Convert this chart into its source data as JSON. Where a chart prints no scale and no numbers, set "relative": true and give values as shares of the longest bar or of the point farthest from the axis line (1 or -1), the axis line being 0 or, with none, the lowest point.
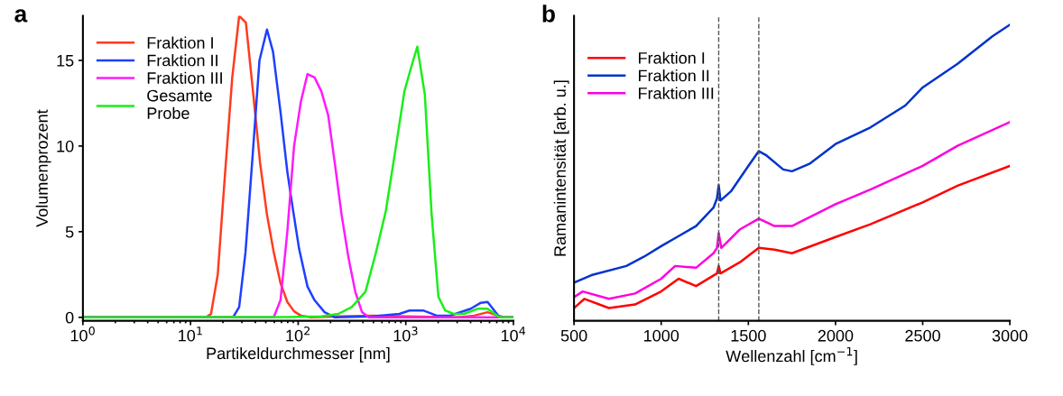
{
  "chart_data": [
    {
      "type": "line",
      "xlabel": "Partikeldurchmesser [nm]",
      "ylabel": "Volumenprozent",
      "annotations": [
        "a"
      ],
      "log": "x",
      "legend": "top left",
      "grid": false,
      "xlim": [
        1,
        10000
      ],
      "xticks": [
        {
          "value": 1,
          "label": "10$^{0}$"
        },
        {
          "value": 10,
          "label": "10$^{1}$"
        },
        {
          "value": 100,
          "label": "10$^{2}$"
        },
        {
          "value": 1000,
          "label": "10$^{3}$"
        },
        {
          "value": 10000,
          "label": "10$^{4}$"
        }
      ],
      "ylim": [
        -0.2,
        17.6
      ],
      "yticks": [
        0,
        5,
        10,
        15
      ],
      "series": [
        {
          "name": "Fraktion I",
          "color": "#ff3b1f",
          "x": [
            1,
            13.9,
            15.5,
            17.9,
            20.7,
            24.4,
            28.3,
            32.7,
            38.3,
            44.3,
            51.3,
            59.3,
            68.5,
            79.3,
            91.6,
            106,
            132,
            236,
            487,
            1007,
            2994,
            4307,
            5754,
            7161,
            8281,
            10000
          ],
          "values": [
            0,
            0,
            0.2,
            2.5,
            8,
            14,
            17.6,
            17.2,
            13,
            9,
            6,
            3.8,
            2,
            0.9,
            0.35,
            0.1,
            0,
            0.05,
            0.1,
            0.05,
            0,
            0.1,
            0.3,
            0.1,
            0,
            0
          ]
        },
        {
          "name": "Fraktion II",
          "color": "#1f3fff",
          "x": [
            1,
            24.8,
            28.3,
            32.4,
            37.8,
            43.7,
            51.3,
            58.4,
            68.5,
            79.3,
            88.4,
            102,
            122,
            142,
            176,
            219,
            487,
            871,
            1083,
            1449,
            1936,
            2588,
            4006,
            4977,
            5754,
            7430,
            10000
          ],
          "values": [
            0,
            0,
            0.6,
            3.8,
            9.5,
            15,
            16.8,
            15.5,
            12,
            8.5,
            6.5,
            4,
            1.8,
            1,
            0.3,
            0,
            0.05,
            0.2,
            0.4,
            0.4,
            0.1,
            0.1,
            0.5,
            0.85,
            0.9,
            0,
            0
          ]
        },
        {
          "name": "Fraktion III",
          "color": "#ff1aff",
          "x": [
            1,
            59.3,
            68.5,
            79.3,
            91.6,
            106,
            122,
            142,
            164,
            190,
            219,
            253,
            293,
            339,
            392,
            453,
            10000
          ],
          "values": [
            0,
            0,
            1,
            5,
            10,
            12.6,
            14.2,
            14,
            13.2,
            11.8,
            9,
            6,
            3.5,
            1.5,
            0.3,
            0,
            0
          ]
        },
        {
          "name": "Gesamte\nProbe",
          "color": "#1aee1a",
          "x": [
            1,
            79.3,
            164,
            236,
            315,
            422,
            524,
            652,
            811,
            971,
            1122,
            1279,
            1503,
            1738,
            2009,
            2323,
            2786,
            3459,
            4634,
            5754,
            7430,
            10000
          ],
          "values": [
            0,
            0.02,
            0.05,
            0.2,
            0.6,
            1.5,
            3.7,
            6.2,
            10,
            13.2,
            14.6,
            15.8,
            13,
            6,
            1.2,
            0.4,
            0.2,
            0.2,
            0.5,
            0.5,
            0,
            0
          ]
        }
      ]
    },
    {
      "type": "line",
      "xlabel": "Wellenzahl [cm$^{−1}$]",
      "ylabel": "Ramanintensität [arb. u.]",
      "annotations": [
        "b"
      ],
      "relative": true,
      "legend": "top left",
      "grid": false,
      "tick_labels": "x",
      "xlim": [
        500,
        3000
      ],
      "xticks": [
        500,
        1000,
        1500,
        2000,
        2500,
        3000
      ],
      "ref_lines": [
        {
          "axis": "x",
          "value": 1330,
          "label": null,
          "color": "#555555",
          "line_style": "dashed"
        },
        {
          "axis": "x",
          "value": 1560,
          "label": null,
          "color": "#555555",
          "line_style": "dashed"
        }
      ],
      "series": [
        {
          "name": "Fraktion I",
          "color": "#ff0000",
          "x": [
            500,
            560,
            700,
            850,
            1000,
            1100,
            1200,
            1320,
            1330,
            1340,
            1450,
            1560,
            1650,
            1750,
            2000,
            2200,
            2500,
            2700,
            3000
          ],
          "values": [
            0.043,
            0.074,
            0.043,
            0.055,
            0.099,
            0.142,
            0.117,
            0.16,
            0.185,
            0.16,
            0.197,
            0.246,
            0.24,
            0.228,
            0.283,
            0.326,
            0.4,
            0.456,
            0.523
          ]
        },
        {
          "name": "Fraktion II",
          "color": "#0033cc",
          "x": [
            500,
            600,
            800,
            900,
            1000,
            1100,
            1200,
            1300,
            1320,
            1330,
            1340,
            1400,
            1500,
            1560,
            1600,
            1700,
            1750,
            1850,
            2000,
            2200,
            2400,
            2500,
            2700,
            2900,
            3000
          ],
          "values": [
            0.129,
            0.154,
            0.185,
            0.216,
            0.252,
            0.286,
            0.32,
            0.382,
            0.413,
            0.458,
            0.406,
            0.437,
            0.523,
            0.573,
            0.56,
            0.511,
            0.505,
            0.53,
            0.597,
            0.653,
            0.727,
            0.788,
            0.868,
            0.961,
            1
          ]
        },
        {
          "name": "Fraktion III",
          "color": "#ff00dd",
          "x": [
            500,
            550,
            700,
            850,
            1000,
            1080,
            1200,
            1300,
            1320,
            1330,
            1345,
            1450,
            1560,
            1650,
            1750,
            2000,
            2200,
            2500,
            2700,
            3000
          ],
          "values": [
            0.08,
            0.099,
            0.074,
            0.092,
            0.142,
            0.185,
            0.179,
            0.228,
            0.246,
            0.296,
            0.246,
            0.308,
            0.345,
            0.32,
            0.32,
            0.394,
            0.443,
            0.523,
            0.591,
            0.671
          ]
        }
      ]
    }
  ]
}
